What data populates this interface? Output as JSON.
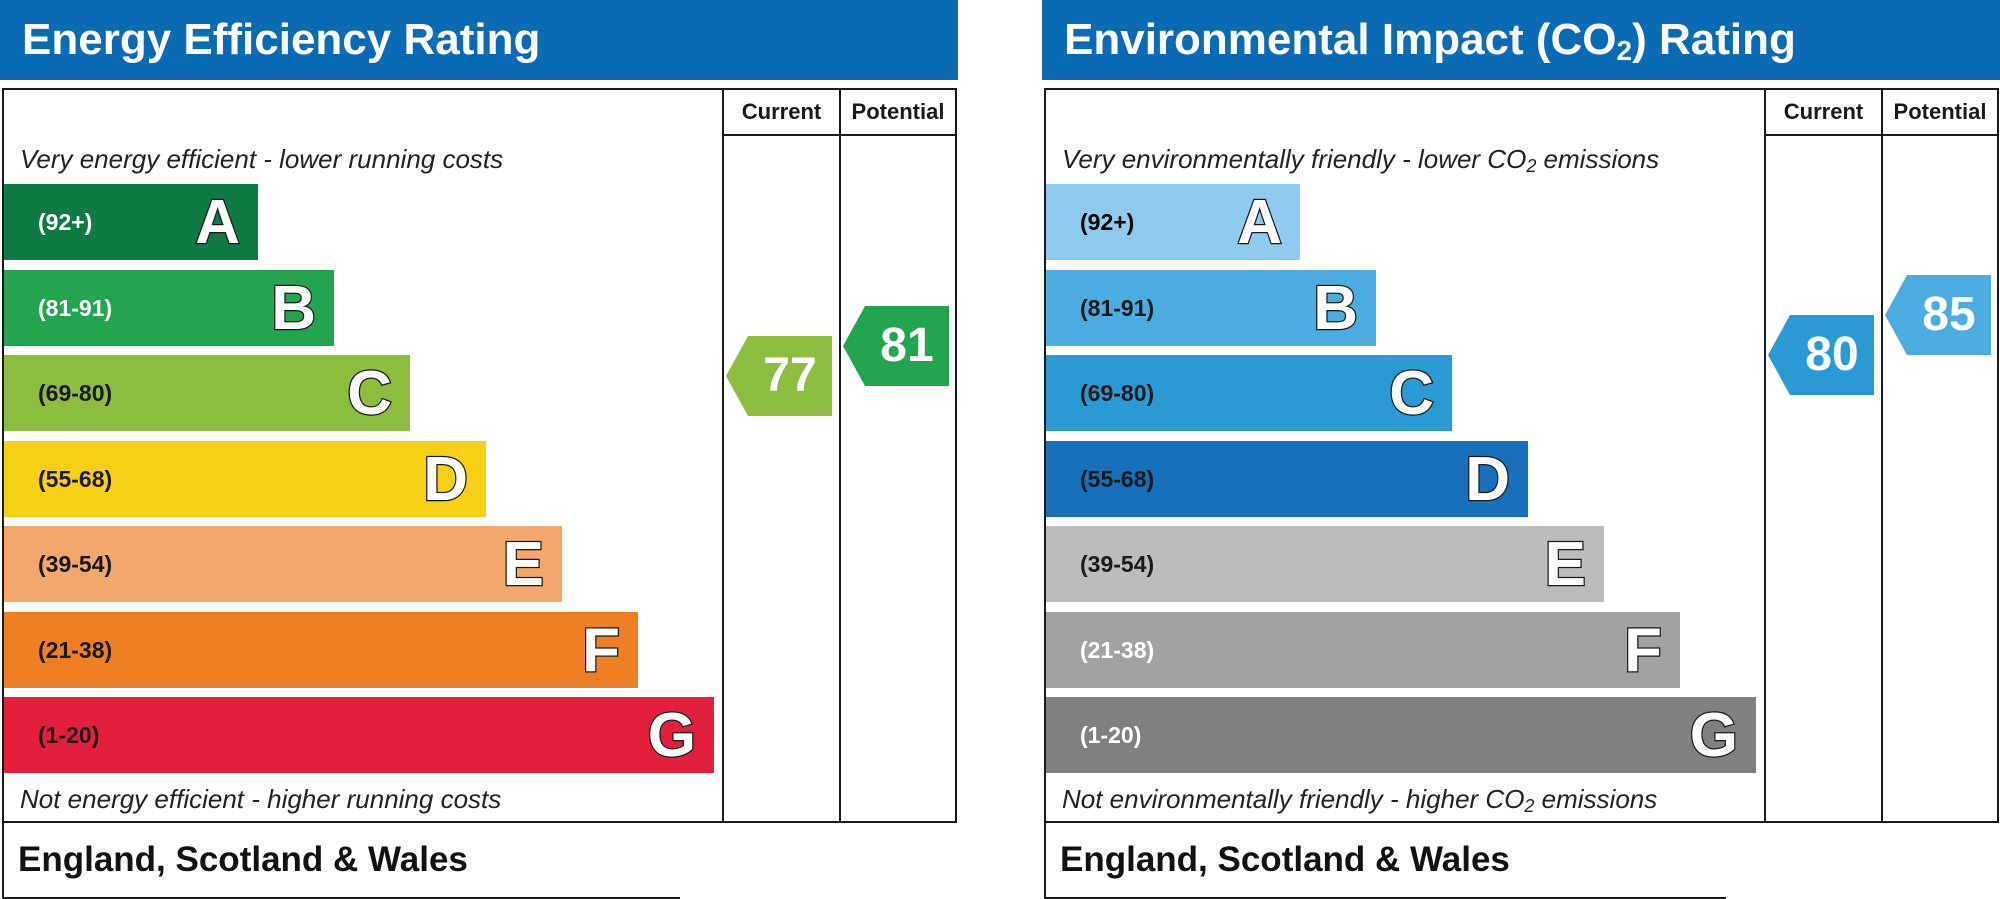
{
  "chart_data": [
    {
      "type": "bar",
      "title": "Energy Efficiency Rating",
      "columns": [
        "Current",
        "Potential"
      ],
      "top_caption": "Very energy efficient - lower running costs",
      "bottom_caption": "Not energy efficient - higher running costs",
      "footer": "England, Scotland & Wales",
      "bands": [
        {
          "letter": "A",
          "range": "(92+)",
          "min": 92,
          "max": 100,
          "color": "#0f7a44",
          "text_color": "#ffffff"
        },
        {
          "letter": "B",
          "range": "(81-91)",
          "min": 81,
          "max": 91,
          "color": "#23a44f",
          "text_color": "#ffffff"
        },
        {
          "letter": "C",
          "range": "(69-80)",
          "min": 69,
          "max": 80,
          "color": "#8cbd3f",
          "text_color": "#1a1a1a"
        },
        {
          "letter": "D",
          "range": "(55-68)",
          "min": 55,
          "max": 68,
          "color": "#f6cf17",
          "text_color": "#1a1a1a"
        },
        {
          "letter": "E",
          "range": "(39-54)",
          "min": 39,
          "max": 54,
          "color": "#f2a86d",
          "text_color": "#1a1a1a"
        },
        {
          "letter": "F",
          "range": "(21-38)",
          "min": 21,
          "max": 38,
          "color": "#ee7f22",
          "text_color": "#1a1a1a"
        },
        {
          "letter": "G",
          "range": "(1-20)",
          "min": 1,
          "max": 20,
          "color": "#e2203d",
          "text_color": "#1a1a1a"
        }
      ],
      "current": {
        "value": 77,
        "band": "C",
        "color": "#8cbd3f"
      },
      "potential": {
        "value": 81,
        "band": "B",
        "color": "#23a44f"
      }
    },
    {
      "type": "bar",
      "title": "Environmental Impact (CO",
      "title_sub": "2",
      "title_end": ") Rating",
      "columns": [
        "Current",
        "Potential"
      ],
      "top_caption": "Very environmentally friendly - lower CO",
      "top_caption_sub": "2",
      "top_caption_end": " emissions",
      "bottom_caption": "Not environmentally friendly - higher CO",
      "bottom_caption_sub": "2",
      "bottom_caption_end": " emissions",
      "footer": "England, Scotland & Wales",
      "bands": [
        {
          "letter": "A",
          "range": "(92+)",
          "min": 92,
          "max": 100,
          "color": "#8fcbee",
          "text_color": "#000000"
        },
        {
          "letter": "B",
          "range": "(81-91)",
          "min": 81,
          "max": 91,
          "color": "#4cace0",
          "text_color": "#1a1a1a"
        },
        {
          "letter": "C",
          "range": "(69-80)",
          "min": 69,
          "max": 80,
          "color": "#2a9ad5",
          "text_color": "#1a1a1a"
        },
        {
          "letter": "D",
          "range": "(55-68)",
          "min": 55,
          "max": 68,
          "color": "#1870ba",
          "text_color": "#1a1a1a"
        },
        {
          "letter": "E",
          "range": "(39-54)",
          "min": 39,
          "max": 54,
          "color": "#bcbcbc",
          "text_color": "#1a1a1a"
        },
        {
          "letter": "F",
          "range": "(21-38)",
          "min": 21,
          "max": 38,
          "color": "#a2a2a2",
          "text_color": "#ffffff"
        },
        {
          "letter": "G",
          "range": "(1-20)",
          "min": 1,
          "max": 20,
          "color": "#808080",
          "text_color": "#ffffff"
        }
      ],
      "current": {
        "value": 80,
        "band": "C",
        "color": "#2a9ad5"
      },
      "potential": {
        "value": 85,
        "band": "B",
        "color": "#4cace0"
      }
    }
  ]
}
